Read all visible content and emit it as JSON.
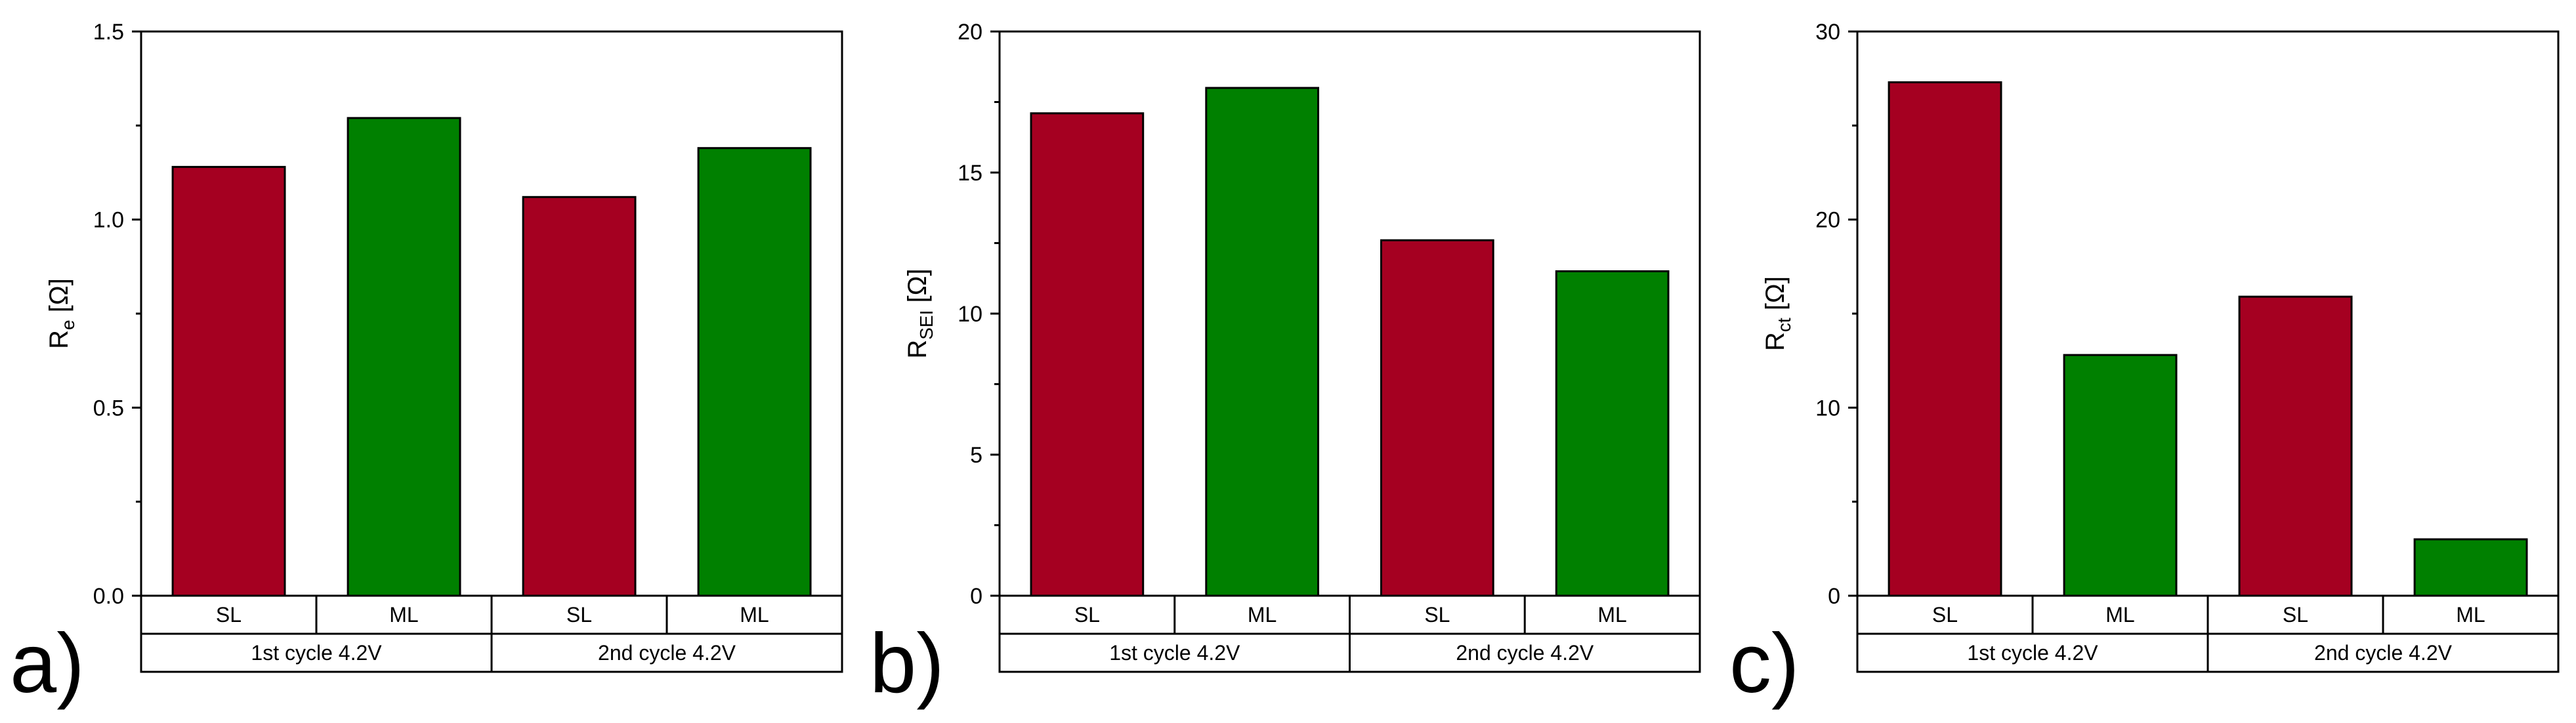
{
  "colors": {
    "SL": "#a50021",
    "ML": "#008000",
    "axis": "#000000",
    "background": "#ffffff"
  },
  "chart_data": [
    {
      "panel_label": "a)",
      "type": "bar",
      "ylabel_main": "R",
      "ylabel_sub": "e",
      "ylabel_unit": " [Ω]",
      "ylim": [
        0,
        1.5
      ],
      "yticks": [
        0.0,
        0.5,
        1.0,
        1.5
      ],
      "ytick_labels": [
        "0.0",
        "0.5",
        "1.0",
        "1.5"
      ],
      "minor_ytick_step": 0.25,
      "groups": [
        "1st cycle 4.2V",
        "2nd cycle 4.2V"
      ],
      "categories": [
        "SL",
        "ML"
      ],
      "series": [
        {
          "name": "SL",
          "values": [
            1.14,
            1.06
          ]
        },
        {
          "name": "ML",
          "values": [
            1.27,
            1.19
          ]
        }
      ]
    },
    {
      "panel_label": "b)",
      "type": "bar",
      "ylabel_main": "R",
      "ylabel_sub": "SEI",
      "ylabel_unit": " [Ω]",
      "ylim": [
        0,
        20
      ],
      "yticks": [
        0,
        5,
        10,
        15,
        20
      ],
      "ytick_labels": [
        "0",
        "5",
        "10",
        "15",
        "20"
      ],
      "minor_ytick_step": 2.5,
      "groups": [
        "1st cycle 4.2V",
        "2nd cycle 4.2V"
      ],
      "categories": [
        "SL",
        "ML"
      ],
      "series": [
        {
          "name": "SL",
          "values": [
            17.1,
            12.6
          ]
        },
        {
          "name": "ML",
          "values": [
            18.0,
            11.5
          ]
        }
      ]
    },
    {
      "panel_label": "c)",
      "type": "bar",
      "ylabel_main": "R",
      "ylabel_sub": "ct",
      "ylabel_unit": " [Ω]",
      "ylim": [
        0,
        30
      ],
      "yticks": [
        0,
        10,
        20,
        30
      ],
      "ytick_labels": [
        "0",
        "10",
        "20",
        "30"
      ],
      "minor_ytick_step": 5,
      "groups": [
        "1st cycle 4.2V",
        "2nd cycle 4.2V"
      ],
      "categories": [
        "SL",
        "ML"
      ],
      "series": [
        {
          "name": "SL",
          "values": [
            27.3,
            15.9
          ]
        },
        {
          "name": "ML",
          "values": [
            12.8,
            3.0
          ]
        }
      ]
    }
  ]
}
